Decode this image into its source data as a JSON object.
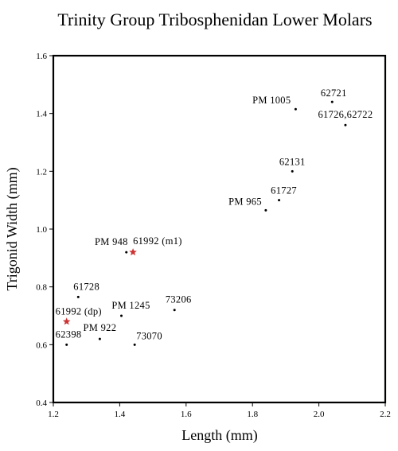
{
  "chart_data": {
    "type": "scatter",
    "title": "Trinity Group Tribosphenidan Lower Molars",
    "xlabel": "Length (mm)",
    "ylabel": "Trigonid Width (mm)",
    "xlim": [
      1.2,
      2.2
    ],
    "ylim": [
      0.4,
      1.6
    ],
    "xticks": [
      "1.2",
      "1.4",
      "1.6",
      "1.8",
      "2.0",
      "2.2"
    ],
    "yticks": [
      "0.4",
      "0.6",
      "0.8",
      "1.0",
      "1.2",
      "1.4",
      "1.6"
    ],
    "grid": false,
    "legend": "none",
    "marker_colors": {
      "dot": "#000000",
      "star": "#cc3333"
    },
    "points": [
      {
        "label": "62721",
        "x": 2.04,
        "y": 1.44,
        "marker": "dot"
      },
      {
        "label": "PM 1005",
        "x": 1.93,
        "y": 1.415,
        "marker": "dot"
      },
      {
        "label": "61726,62722",
        "x": 2.08,
        "y": 1.36,
        "marker": "dot"
      },
      {
        "label": "62131",
        "x": 1.92,
        "y": 1.2,
        "marker": "dot"
      },
      {
        "label": "61727",
        "x": 1.88,
        "y": 1.1,
        "marker": "dot"
      },
      {
        "label": "PM 965",
        "x": 1.84,
        "y": 1.065,
        "marker": "dot"
      },
      {
        "label": "PM 948",
        "x": 1.42,
        "y": 0.92,
        "marker": "dot"
      },
      {
        "label": "61992 (m1)",
        "x": 1.44,
        "y": 0.92,
        "marker": "star"
      },
      {
        "label": "61728",
        "x": 1.275,
        "y": 0.765,
        "marker": "dot"
      },
      {
        "label": "73206",
        "x": 1.565,
        "y": 0.72,
        "marker": "dot"
      },
      {
        "label": "PM 1245",
        "x": 1.405,
        "y": 0.7,
        "marker": "dot"
      },
      {
        "label": "61992 (dp)",
        "x": 1.24,
        "y": 0.68,
        "marker": "star"
      },
      {
        "label": "PM 922",
        "x": 1.34,
        "y": 0.62,
        "marker": "dot"
      },
      {
        "label": "62398",
        "x": 1.24,
        "y": 0.6,
        "marker": "dot"
      },
      {
        "label": "73070",
        "x": 1.445,
        "y": 0.6,
        "marker": "dot"
      }
    ]
  }
}
